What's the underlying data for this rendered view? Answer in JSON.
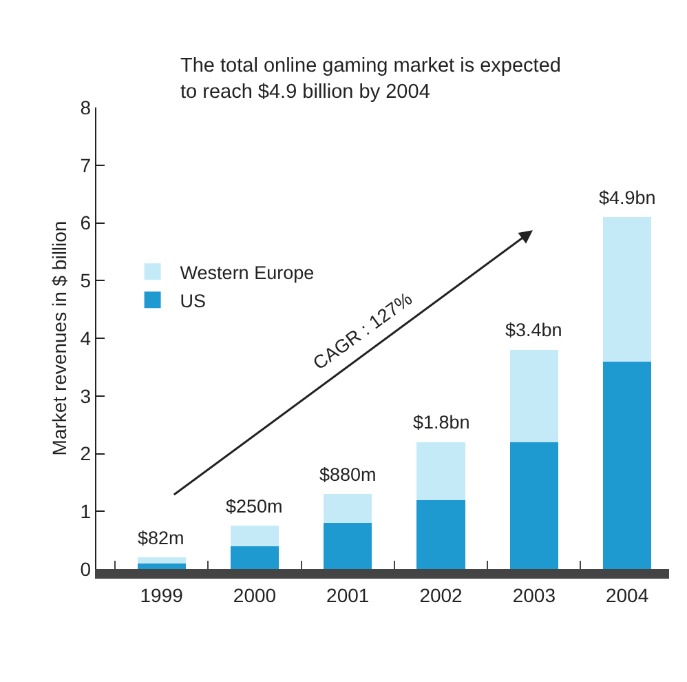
{
  "chart_data": {
    "type": "bar",
    "stacked": true,
    "title": "The total online gaming market is expected\nto reach $4.9 billion by 2004",
    "ylabel": "Market revenues in $ billion",
    "categories": [
      "1999",
      "2000",
      "2001",
      "2002",
      "2003",
      "2004"
    ],
    "series": [
      {
        "name": "US",
        "color": "#1e9ad0",
        "values": [
          0.1,
          0.4,
          0.8,
          1.2,
          2.2,
          3.6
        ]
      },
      {
        "name": "Western Europe",
        "color": "#c4eaf8",
        "values": [
          0.1,
          0.35,
          0.5,
          1.0,
          1.6,
          2.5
        ]
      }
    ],
    "annotations": [
      {
        "text": "$82m",
        "x": "1999",
        "y": 0.2
      },
      {
        "text": "$250m",
        "x": "2000",
        "y": 0.75
      },
      {
        "text": "$880m",
        "x": "2001",
        "y": 1.3
      },
      {
        "text": "$1.8bn",
        "x": "2002",
        "y": 2.2
      },
      {
        "text": "$3.4bn",
        "x": "2003",
        "y": 3.8
      },
      {
        "text": "$4.9bn",
        "x": "2004",
        "y": 6.1
      },
      "CAGR : 127%"
    ],
    "ylim": [
      0,
      8
    ],
    "yticks": [
      0,
      1,
      2,
      3,
      4,
      5,
      6,
      7,
      8
    ],
    "legend": "top left"
  }
}
